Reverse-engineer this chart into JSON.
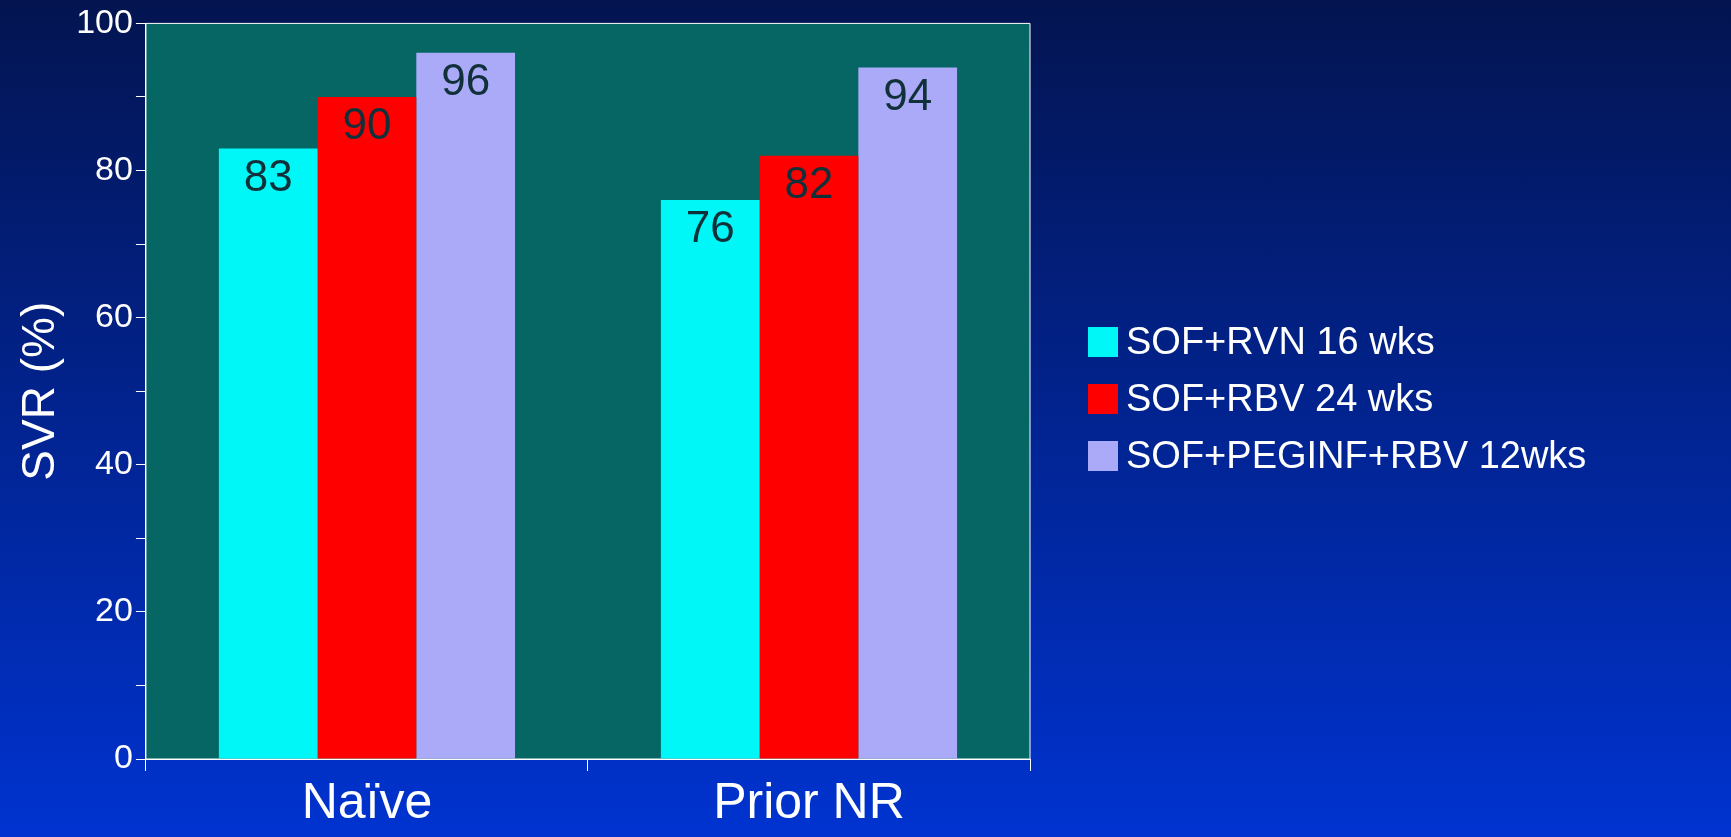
{
  "chart_data": {
    "type": "bar",
    "ylabel": "SVR (%)",
    "categories": [
      "Naïve",
      "Prior NR"
    ],
    "series": [
      {
        "name": "SOF+RVN 16 wks",
        "color": "#00f7f7",
        "values": [
          83,
          76
        ]
      },
      {
        "name": "SOF+RBV 24 wks",
        "color": "#ff0000",
        "values": [
          90,
          82
        ]
      },
      {
        "name": "SOF+PEGINF+RBV 12wks",
        "color": "#aaaaf8",
        "values": [
          96,
          94
        ]
      }
    ],
    "ylim": [
      0,
      100
    ],
    "yticks": [
      0,
      {
        "value": 10,
        "label": null
      },
      20,
      {
        "value": 30,
        "label": null
      },
      40,
      {
        "value": 50,
        "label": null
      },
      60,
      {
        "value": 70,
        "label": null
      },
      80,
      {
        "value": 90,
        "label": null
      },
      100
    ],
    "grid": false,
    "legend": "right",
    "data_labels": true
  }
}
